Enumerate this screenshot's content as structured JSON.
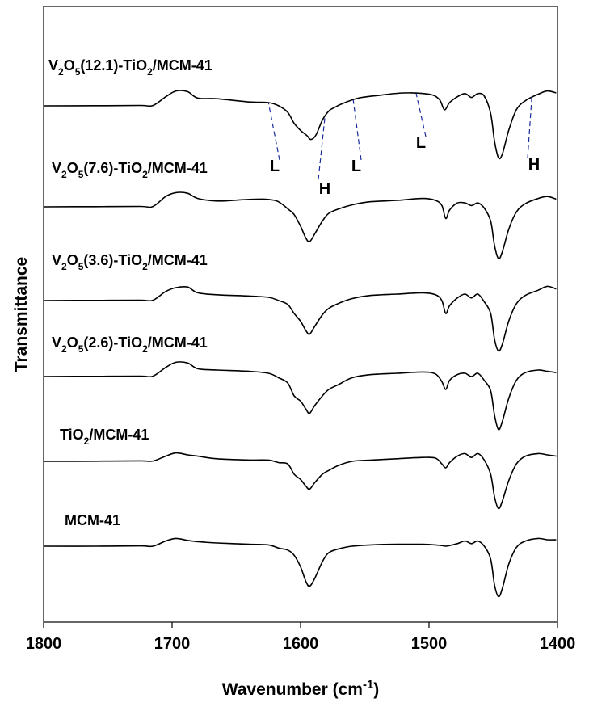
{
  "chart_data": {
    "type": "line",
    "xlabel": "Wavenumber (cm",
    "xlabel_sup": "-1",
    "xlabel_close": ")",
    "ylabel": "Transmittance",
    "xlim": [
      1800,
      1400
    ],
    "x_reversed": true,
    "y_ticks_shown": false,
    "grid": false,
    "legend": "none",
    "xticks": [
      1800,
      1700,
      1600,
      1500,
      1400
    ],
    "xtick_labels": [
      "1800",
      "1700",
      "1600",
      "1500",
      "1400"
    ],
    "series": [
      {
        "label_parts": [
          {
            "t": "V",
            "sub": false
          },
          {
            "t": "2",
            "sub": true
          },
          {
            "t": "O",
            "sub": false
          },
          {
            "t": "5",
            "sub": true
          },
          {
            "t": "(12.1)-TiO",
            "sub": false
          },
          {
            "t": "2",
            "sub": true
          },
          {
            "t": "/MCM-41",
            "sub": false
          }
        ],
        "points": [
          [
            1800,
            0
          ],
          [
            1760,
            0.2
          ],
          [
            1725,
            0.6
          ],
          [
            1715,
            0.5
          ],
          [
            1705,
            14
          ],
          [
            1697,
            23
          ],
          [
            1688,
            22
          ],
          [
            1680,
            12
          ],
          [
            1665,
            11
          ],
          [
            1640,
            6
          ],
          [
            1625,
            5
          ],
          [
            1617,
            0
          ],
          [
            1610,
            -10
          ],
          [
            1605,
            -27
          ],
          [
            1600,
            -38
          ],
          [
            1595,
            -46
          ],
          [
            1592,
            -52
          ],
          [
            1588,
            -45
          ],
          [
            1583,
            -22
          ],
          [
            1578,
            -8
          ],
          [
            1573,
            -2
          ],
          [
            1568,
            3
          ],
          [
            1555,
            12
          ],
          [
            1540,
            16
          ],
          [
            1520,
            20
          ],
          [
            1500,
            18
          ],
          [
            1492,
            10
          ],
          [
            1488,
            -6
          ],
          [
            1484,
            5
          ],
          [
            1478,
            14
          ],
          [
            1472,
            19
          ],
          [
            1467,
            13
          ],
          [
            1462,
            19
          ],
          [
            1457,
            15
          ],
          [
            1452,
            -12
          ],
          [
            1449,
            -55
          ],
          [
            1446,
            -80
          ],
          [
            1443,
            -75
          ],
          [
            1438,
            -38
          ],
          [
            1432,
            -6
          ],
          [
            1425,
            8
          ],
          [
            1415,
            18
          ],
          [
            1408,
            23
          ],
          [
            1401,
            20
          ]
        ]
      },
      {
        "label_parts": [
          {
            "t": "V",
            "sub": false
          },
          {
            "t": "2",
            "sub": true
          },
          {
            "t": "O",
            "sub": false
          },
          {
            "t": "5",
            "sub": true
          },
          {
            "t": "(7.6)-TiO",
            "sub": false
          },
          {
            "t": "2",
            "sub": true
          },
          {
            "t": "/MCM-41",
            "sub": false
          }
        ],
        "points": [
          [
            1800,
            0
          ],
          [
            1760,
            0.3
          ],
          [
            1725,
            0.6
          ],
          [
            1715,
            0.5
          ],
          [
            1705,
            16
          ],
          [
            1697,
            22
          ],
          [
            1688,
            21
          ],
          [
            1680,
            13
          ],
          [
            1665,
            9
          ],
          [
            1645,
            11
          ],
          [
            1630,
            12
          ],
          [
            1620,
            10
          ],
          [
            1615,
            5
          ],
          [
            1610,
            -3
          ],
          [
            1605,
            -12
          ],
          [
            1600,
            -30
          ],
          [
            1596,
            -48
          ],
          [
            1593,
            -54
          ],
          [
            1589,
            -42
          ],
          [
            1583,
            -22
          ],
          [
            1578,
            -10
          ],
          [
            1570,
            -3
          ],
          [
            1560,
            3
          ],
          [
            1545,
            8
          ],
          [
            1525,
            10
          ],
          [
            1505,
            13
          ],
          [
            1495,
            10
          ],
          [
            1490,
            2
          ],
          [
            1487,
            -18
          ],
          [
            1484,
            -5
          ],
          [
            1478,
            6
          ],
          [
            1472,
            6
          ],
          [
            1467,
            2
          ],
          [
            1462,
            6
          ],
          [
            1457,
            -2
          ],
          [
            1452,
            -22
          ],
          [
            1449,
            -60
          ],
          [
            1446,
            -80
          ],
          [
            1443,
            -70
          ],
          [
            1438,
            -35
          ],
          [
            1432,
            -8
          ],
          [
            1425,
            5
          ],
          [
            1415,
            13
          ],
          [
            1408,
            16
          ],
          [
            1401,
            12
          ]
        ]
      },
      {
        "label_parts": [
          {
            "t": "V",
            "sub": false
          },
          {
            "t": "2",
            "sub": true
          },
          {
            "t": "O",
            "sub": false
          },
          {
            "t": "5",
            "sub": true
          },
          {
            "t": "(3.6)-TiO",
            "sub": false
          },
          {
            "t": "2",
            "sub": true
          },
          {
            "t": "/MCM-41",
            "sub": false
          }
        ],
        "points": [
          [
            1800,
            0
          ],
          [
            1760,
            0.3
          ],
          [
            1725,
            0.6
          ],
          [
            1715,
            0.5
          ],
          [
            1705,
            14
          ],
          [
            1697,
            20
          ],
          [
            1688,
            21
          ],
          [
            1680,
            12
          ],
          [
            1665,
            9
          ],
          [
            1640,
            7
          ],
          [
            1625,
            5
          ],
          [
            1617,
            0
          ],
          [
            1610,
            -6
          ],
          [
            1605,
            -20
          ],
          [
            1600,
            -32
          ],
          [
            1596,
            -46
          ],
          [
            1593,
            -52
          ],
          [
            1589,
            -40
          ],
          [
            1583,
            -22
          ],
          [
            1578,
            -12
          ],
          [
            1570,
            -4
          ],
          [
            1560,
            3
          ],
          [
            1545,
            8
          ],
          [
            1525,
            10
          ],
          [
            1505,
            12
          ],
          [
            1495,
            9
          ],
          [
            1490,
            0
          ],
          [
            1487,
            -20
          ],
          [
            1484,
            -8
          ],
          [
            1478,
            4
          ],
          [
            1472,
            10
          ],
          [
            1467,
            4
          ],
          [
            1462,
            10
          ],
          [
            1457,
            -2
          ],
          [
            1452,
            -20
          ],
          [
            1449,
            -60
          ],
          [
            1446,
            -78
          ],
          [
            1443,
            -68
          ],
          [
            1438,
            -32
          ],
          [
            1432,
            -5
          ],
          [
            1425,
            8
          ],
          [
            1415,
            16
          ],
          [
            1408,
            22
          ],
          [
            1401,
            18
          ]
        ]
      },
      {
        "label_parts": [
          {
            "t": "V",
            "sub": false
          },
          {
            "t": "2",
            "sub": true
          },
          {
            "t": "O",
            "sub": false
          },
          {
            "t": "5",
            "sub": true
          },
          {
            "t": "(2.6)-TiO",
            "sub": false
          },
          {
            "t": "2",
            "sub": true
          },
          {
            "t": "/MCM-41",
            "sub": false
          }
        ],
        "points": [
          [
            1800,
            0
          ],
          [
            1760,
            0.3
          ],
          [
            1725,
            0.6
          ],
          [
            1715,
            0.5
          ],
          [
            1705,
            14
          ],
          [
            1697,
            22
          ],
          [
            1688,
            21
          ],
          [
            1680,
            12
          ],
          [
            1665,
            10
          ],
          [
            1640,
            8
          ],
          [
            1625,
            5
          ],
          [
            1617,
            -2
          ],
          [
            1610,
            -10
          ],
          [
            1605,
            -30
          ],
          [
            1600,
            -38
          ],
          [
            1596,
            -50
          ],
          [
            1593,
            -57
          ],
          [
            1589,
            -45
          ],
          [
            1583,
            -30
          ],
          [
            1578,
            -20
          ],
          [
            1570,
            -12
          ],
          [
            1560,
            -2
          ],
          [
            1545,
            3
          ],
          [
            1525,
            5
          ],
          [
            1505,
            7
          ],
          [
            1495,
            4
          ],
          [
            1490,
            -8
          ],
          [
            1487,
            -20
          ],
          [
            1484,
            -6
          ],
          [
            1478,
            3
          ],
          [
            1472,
            5
          ],
          [
            1467,
            0
          ],
          [
            1462,
            5
          ],
          [
            1457,
            -6
          ],
          [
            1452,
            -22
          ],
          [
            1449,
            -60
          ],
          [
            1446,
            -82
          ],
          [
            1443,
            -70
          ],
          [
            1438,
            -34
          ],
          [
            1432,
            -6
          ],
          [
            1425,
            6
          ],
          [
            1415,
            10
          ],
          [
            1408,
            8
          ],
          [
            1401,
            6
          ]
        ]
      },
      {
        "label_parts": [
          {
            "t": "TiO",
            "sub": false
          },
          {
            "t": "2",
            "sub": true
          },
          {
            "t": "/MCM-41",
            "sub": false
          }
        ],
        "points": [
          [
            1800,
            0
          ],
          [
            1760,
            0.3
          ],
          [
            1725,
            0.8
          ],
          [
            1715,
            0.5
          ],
          [
            1705,
            8
          ],
          [
            1697,
            13
          ],
          [
            1688,
            10
          ],
          [
            1680,
            8
          ],
          [
            1665,
            4
          ],
          [
            1640,
            2
          ],
          [
            1625,
            2
          ],
          [
            1617,
            -2
          ],
          [
            1610,
            -4
          ],
          [
            1605,
            -20
          ],
          [
            1600,
            -28
          ],
          [
            1596,
            -38
          ],
          [
            1593,
            -43
          ],
          [
            1589,
            -33
          ],
          [
            1583,
            -20
          ],
          [
            1578,
            -14
          ],
          [
            1570,
            -6
          ],
          [
            1560,
            0
          ],
          [
            1545,
            2
          ],
          [
            1525,
            4
          ],
          [
            1505,
            6
          ],
          [
            1495,
            5
          ],
          [
            1490,
            -4
          ],
          [
            1487,
            -10
          ],
          [
            1484,
            -2
          ],
          [
            1478,
            8
          ],
          [
            1472,
            12
          ],
          [
            1467,
            6
          ],
          [
            1462,
            12
          ],
          [
            1457,
            2
          ],
          [
            1452,
            -20
          ],
          [
            1449,
            -55
          ],
          [
            1446,
            -73
          ],
          [
            1443,
            -62
          ],
          [
            1438,
            -30
          ],
          [
            1432,
            -4
          ],
          [
            1425,
            8
          ],
          [
            1415,
            12
          ],
          [
            1408,
            10
          ],
          [
            1401,
            8
          ]
        ]
      },
      {
        "label_parts": [
          {
            "t": "MCM-41",
            "sub": false
          }
        ],
        "points": [
          [
            1800,
            0
          ],
          [
            1760,
            0
          ],
          [
            1725,
            0.5
          ],
          [
            1715,
            0
          ],
          [
            1705,
            8
          ],
          [
            1697,
            12
          ],
          [
            1688,
            9
          ],
          [
            1680,
            7
          ],
          [
            1665,
            5
          ],
          [
            1640,
            3
          ],
          [
            1625,
            2
          ],
          [
            1617,
            -3
          ],
          [
            1610,
            -6
          ],
          [
            1605,
            -14
          ],
          [
            1600,
            -32
          ],
          [
            1596,
            -54
          ],
          [
            1593,
            -62
          ],
          [
            1589,
            -50
          ],
          [
            1583,
            -24
          ],
          [
            1578,
            -10
          ],
          [
            1570,
            -4
          ],
          [
            1560,
            0
          ],
          [
            1545,
            2
          ],
          [
            1525,
            3
          ],
          [
            1505,
            3
          ],
          [
            1495,
            2
          ],
          [
            1490,
            1
          ],
          [
            1487,
            0
          ],
          [
            1484,
            1
          ],
          [
            1478,
            4
          ],
          [
            1472,
            8
          ],
          [
            1467,
            4
          ],
          [
            1462,
            8
          ],
          [
            1457,
            0
          ],
          [
            1452,
            -20
          ],
          [
            1449,
            -60
          ],
          [
            1446,
            -78
          ],
          [
            1443,
            -66
          ],
          [
            1438,
            -28
          ],
          [
            1432,
            -2
          ],
          [
            1425,
            8
          ],
          [
            1415,
            12
          ],
          [
            1408,
            10
          ],
          [
            1401,
            10
          ]
        ]
      }
    ],
    "annotations": [
      {
        "text": "L",
        "x": 1625,
        "series": 0
      },
      {
        "text": "H",
        "x": 1581,
        "series": 0
      },
      {
        "text": "L",
        "x": 1559,
        "series": 0
      },
      {
        "text": "L",
        "x": 1510,
        "series": 0
      },
      {
        "text": "H",
        "x": 1420,
        "series": 0
      }
    ]
  }
}
